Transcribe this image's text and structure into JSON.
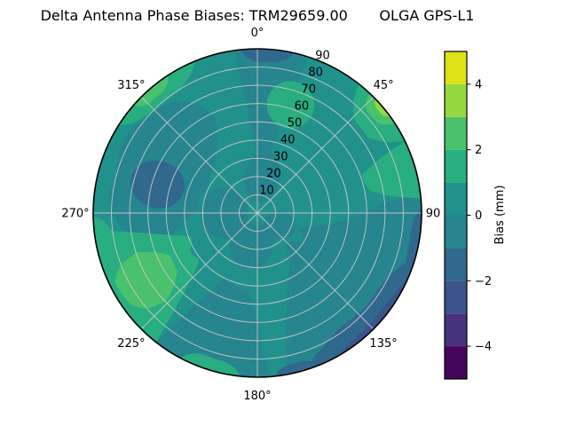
{
  "title": {
    "full": "Delta Antenna Phase Biases: TRM29659.00       OLGA GPS-L1"
  },
  "polar_axis": {
    "angular_labels": [
      "0°",
      "45°",
      "90",
      "135°",
      "180°",
      "225°",
      "270°",
      "315°"
    ],
    "radial_labels": [
      "10",
      "20",
      "30",
      "40",
      "50",
      "60",
      "70",
      "80",
      "90"
    ],
    "rmax": 90,
    "radial_label_angle_deg": 22.5,
    "grid_color": "#c8c8c8"
  },
  "colorbar": {
    "label": "Bias (mm)",
    "tick_labels": [
      "4",
      "2",
      "0",
      "−2",
      "−4"
    ],
    "tick_values": [
      4,
      2,
      0,
      -2,
      -4
    ],
    "vmin": -5,
    "vmax": 5,
    "band_colors_low_to_high": [
      "#450559",
      "#46327e",
      "#3b528b",
      "#31688e",
      "#26858e",
      "#21918c",
      "#28ae80",
      "#4ac16d",
      "#95d840",
      "#dde318"
    ]
  },
  "chart_data": {
    "type": "polar_contour",
    "title": "Delta Antenna Phase Biases: TRM29659.00   OLGA GPS-L1",
    "value_label": "Bias (mm)",
    "value_range_mm": [
      -5,
      5
    ],
    "contour_interval_mm": 1,
    "azimuth_ticks_deg": [
      0,
      45,
      90,
      135,
      180,
      225,
      270,
      315
    ],
    "zenith_ticks_deg": [
      10,
      20,
      30,
      40,
      50,
      60,
      70,
      80,
      90
    ],
    "background_bias_band_mm": [
      0,
      1
    ],
    "features": [
      {
        "shape": "sector",
        "bias_band": [
          -1,
          0
        ],
        "az": [
          83,
          170
        ],
        "r": [
          26,
          90
        ],
        "seed": 1
      },
      {
        "shape": "sector",
        "bias_band": [
          -1,
          0
        ],
        "az": [
          -8,
          18
        ],
        "r": [
          30,
          90
        ],
        "seed": 2
      },
      {
        "shape": "blob",
        "bias_band": [
          -1,
          0
        ],
        "az_c": 8,
        "r_c": 20,
        "r_half": 14,
        "az_half_deg": 28,
        "seed": 3
      },
      {
        "shape": "sector",
        "bias_band": [
          -1,
          0
        ],
        "az": [
          252,
          336
        ],
        "r": [
          32,
          82
        ],
        "seed": 4
      },
      {
        "shape": "sector",
        "bias_band": [
          -1,
          0
        ],
        "az": [
          176,
          218
        ],
        "r": [
          40,
          90
        ],
        "seed": 5
      },
      {
        "shape": "blob",
        "bias_band": [
          -1,
          0
        ],
        "az_c": 190,
        "r_c": 18,
        "r_half": 13,
        "az_half_deg": 38,
        "seed": 6
      },
      {
        "shape": "blob",
        "bias_band": [
          -1,
          0
        ],
        "az_c": 270,
        "r_c": 18,
        "r_half": 13,
        "az_half_deg": 45,
        "seed": 7
      },
      {
        "shape": "blob",
        "bias_band": [
          -1,
          0
        ],
        "az_c": 120,
        "r_c": 14,
        "r_half": 9,
        "az_half_deg": 32,
        "seed": 8
      },
      {
        "shape": "blob",
        "bias_band": [
          -2,
          -1
        ],
        "az_c": 286,
        "r_c": 57,
        "r_half": 15,
        "az_half_deg": 13,
        "seed": 9
      },
      {
        "shape": "sector",
        "bias_band": [
          -2,
          -1
        ],
        "az": [
          -6,
          13
        ],
        "r": [
          83,
          90
        ],
        "seed": 10
      },
      {
        "shape": "sector",
        "bias_band": [
          -2,
          -1
        ],
        "az": [
          88,
          114
        ],
        "r": [
          85,
          90
        ],
        "seed": 11
      },
      {
        "shape": "sector",
        "bias_band": [
          -2,
          -1
        ],
        "az": [
          106,
          162
        ],
        "r": [
          78,
          90
        ],
        "seed": 12
      },
      {
        "shape": "sector",
        "bias_band": [
          -2,
          -1
        ],
        "az": [
          158,
          174
        ],
        "r": [
          85,
          90
        ],
        "seed": 13
      },
      {
        "shape": "sector",
        "bias_band": [
          -3,
          -2
        ],
        "az": [
          115,
          150
        ],
        "r": [
          86.5,
          90
        ],
        "seed": 14
      },
      {
        "shape": "blob",
        "bias_band": [
          1,
          2
        ],
        "az_c": 17,
        "r_c": 62,
        "r_half": 13,
        "az_half_deg": 12,
        "seed": 15
      },
      {
        "shape": "sector",
        "bias_band": [
          1,
          2
        ],
        "az": [
          38,
          64
        ],
        "r": [
          74,
          90
        ],
        "seed": 16
      },
      {
        "shape": "sector",
        "bias_band": [
          1,
          2
        ],
        "az": [
          64,
          85
        ],
        "r": [
          62,
          90
        ],
        "seed": 17
      },
      {
        "shape": "sector",
        "bias_band": [
          1,
          2
        ],
        "az": [
          218,
          264
        ],
        "r": [
          40,
          90
        ],
        "seed": 18
      },
      {
        "shape": "sector",
        "bias_band": [
          1,
          2
        ],
        "az": [
          302,
          338
        ],
        "r": [
          80,
          90
        ],
        "seed": 19
      },
      {
        "shape": "sector",
        "bias_band": [
          1,
          2
        ],
        "az": [
          186,
          208
        ],
        "r": [
          83,
          90
        ],
        "seed": 20
      },
      {
        "shape": "sector",
        "bias_band": [
          1,
          2
        ],
        "az": [
          250,
          269
        ],
        "r": [
          80,
          90
        ],
        "seed": 21
      },
      {
        "shape": "sector",
        "bias_band": [
          2,
          3
        ],
        "az": [
          226,
          252
        ],
        "r": [
          54,
          86
        ],
        "seed": 22
      },
      {
        "shape": "sector",
        "bias_band": [
          2,
          3
        ],
        "az": [
          43,
          57
        ],
        "r": [
          82,
          90
        ],
        "seed": 23
      },
      {
        "shape": "sector",
        "bias_band": [
          2,
          3
        ],
        "az": [
          311,
          327
        ],
        "r": [
          84,
          90
        ],
        "seed": 24
      },
      {
        "shape": "sector",
        "bias_band": [
          3,
          4
        ],
        "az": [
          46,
          54
        ],
        "r": [
          87,
          90
        ],
        "seed": 25
      }
    ]
  }
}
